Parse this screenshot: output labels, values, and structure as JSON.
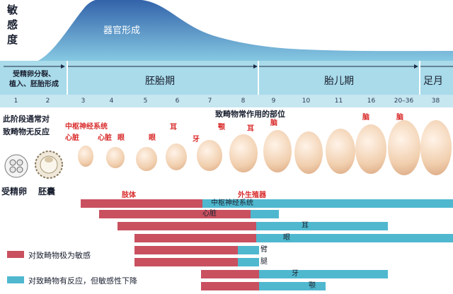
{
  "sensitivity_label": [
    "敏",
    "感",
    "度"
  ],
  "organ_formation": "器官形成",
  "periods": {
    "pre_embryo": [
      "受精卵分裂、",
      "植入、胚胎形成"
    ],
    "embryonic": "胚胎期",
    "fetal": "胎儿期",
    "term": "足月"
  },
  "weeks": [
    "1",
    "2",
    "3",
    "4",
    "5",
    "6",
    "7",
    "8",
    "9",
    "10",
    "11",
    "16",
    "20–36",
    "38"
  ],
  "left_note": [
    "此阶段通常对",
    "致畸物无反应"
  ],
  "stage_labels": {
    "zygote": "受精卵",
    "blastocyst": "胚囊"
  },
  "teratogen_title": "致畸物常作用的部位",
  "organ_labels": {
    "cns": "中枢神经系统",
    "heart_w3": "心脏",
    "heart_w4": "心脏",
    "eye_w4": "眼",
    "eye_w5": "眼",
    "ear_w6": "耳",
    "teeth_w6": "牙",
    "palate_w7": "颚",
    "ear_w8": "耳",
    "brain_w9": "脑",
    "brain_w16": "脑",
    "brain_w20": "脑",
    "limbs": "肢体",
    "genitals": "外生殖器"
  },
  "bars": {
    "cns": "中枢神经系统",
    "heart": "心脏",
    "ear": "耳",
    "eye": "眼",
    "arm": "臂",
    "leg": "腿",
    "teeth": "牙",
    "palate": "颚"
  },
  "legend": {
    "highly_sensitive": "对致畸物极为敏感",
    "less_sensitive": "对致畸物有反应，但敏感性下降",
    "pink": "#c9505f",
    "cyan": "#4fb8cf"
  },
  "colors": {
    "curve_top": "#3f6fb5",
    "curve_bottom": "#8fd0e6",
    "band": "#a9dbea",
    "label_red": "#d92b2b"
  }
}
